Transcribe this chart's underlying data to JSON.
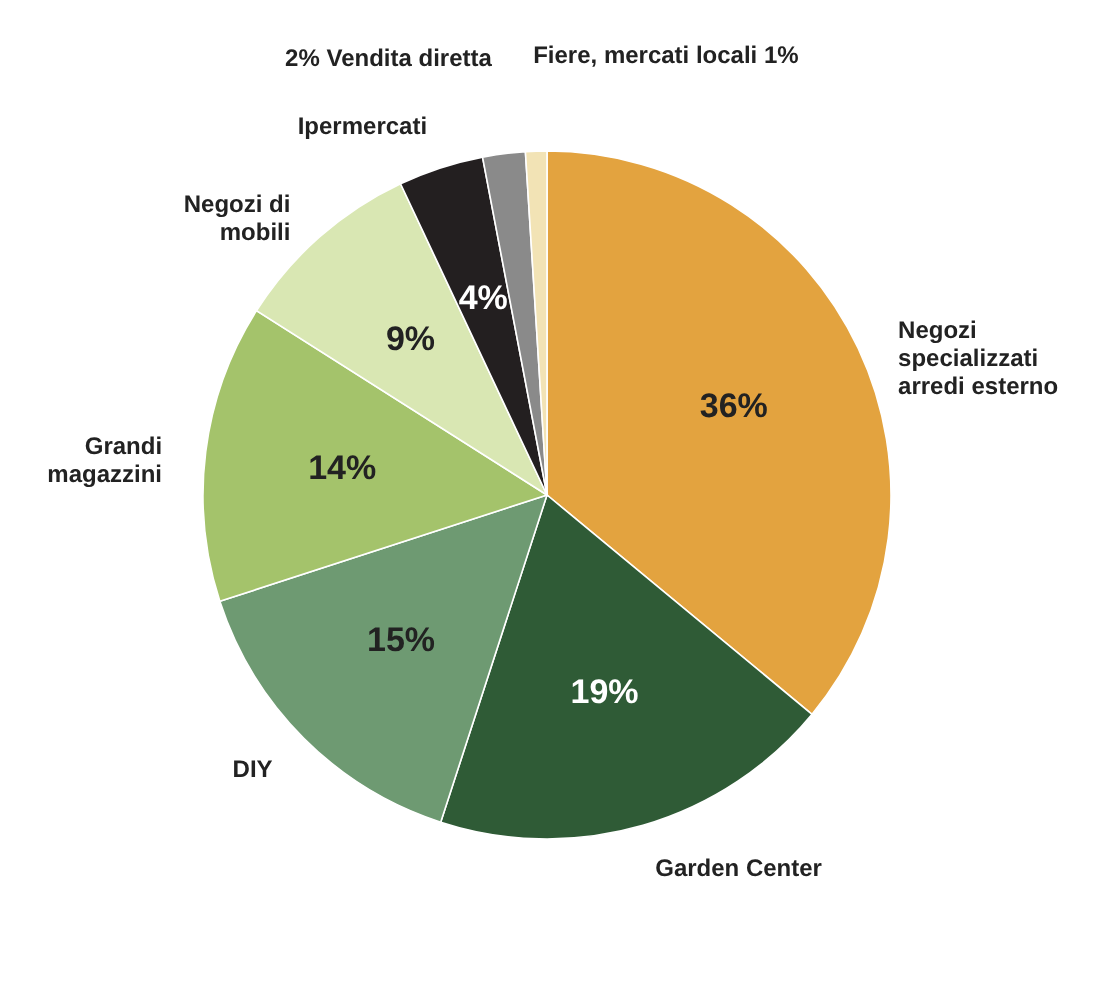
{
  "chart_data": {
    "type": "pie",
    "categories": [
      "Negozi specializzati arredi esterno",
      "Garden Center",
      "DIY",
      "Grandi magazzini",
      "Negozi di mobili",
      "Ipermercati",
      "Vendita diretta",
      "Fiere, mercati locali"
    ],
    "values": [
      36,
      19,
      15,
      14,
      9,
      4,
      2,
      1
    ],
    "value_labels": [
      "36%",
      "19%",
      "15%",
      "14%",
      "9%",
      "4%",
      "2%",
      "1%"
    ],
    "colors": [
      "#e3a33f",
      "#2f5b36",
      "#6e9a72",
      "#a4c36b",
      "#d9e7b3",
      "#231f20",
      "#8a8a8a",
      "#f2e3b5"
    ]
  }
}
